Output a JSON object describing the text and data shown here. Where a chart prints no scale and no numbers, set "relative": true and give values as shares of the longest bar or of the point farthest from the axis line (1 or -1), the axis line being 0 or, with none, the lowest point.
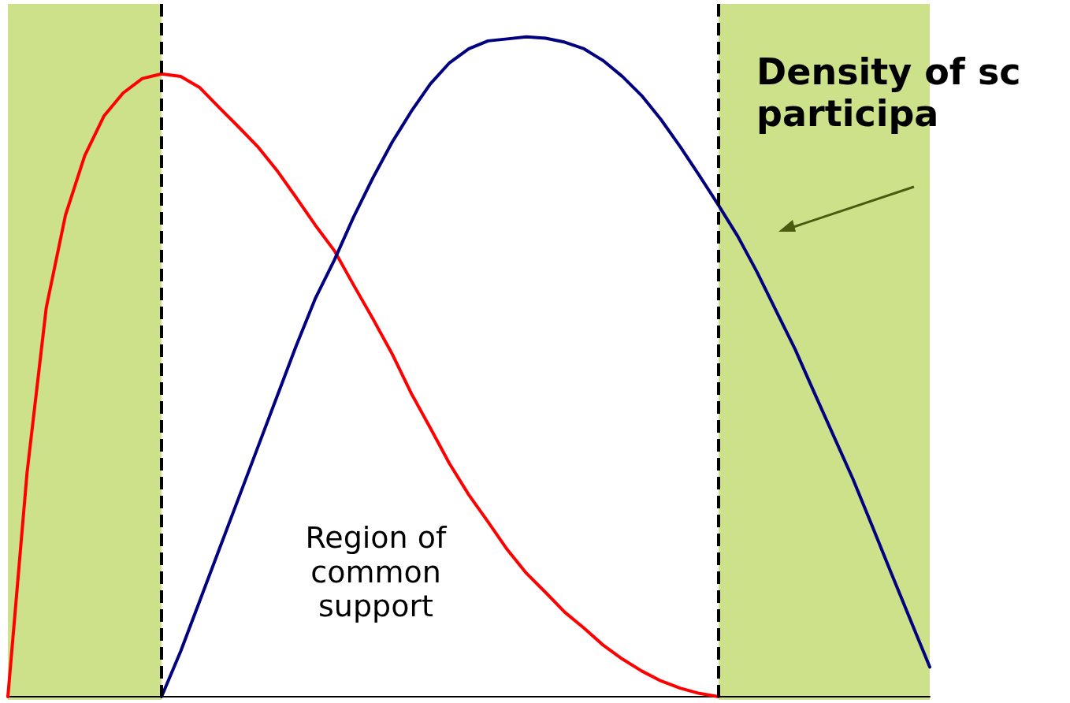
{
  "chart_data": {
    "type": "line",
    "relative": true,
    "grid": false,
    "marker": "none",
    "line_style": "solid",
    "categories": [
      null,
      null,
      null,
      null,
      null,
      null,
      null,
      null,
      null,
      null,
      null,
      null,
      null,
      null,
      null,
      null,
      null,
      null,
      null,
      null,
      null,
      null,
      null,
      null,
      null,
      null,
      null,
      null,
      null,
      null,
      null,
      null,
      null,
      null,
      null,
      null,
      null,
      null,
      null,
      null,
      null,
      null,
      null,
      null,
      null,
      null,
      null,
      null,
      null
    ],
    "series": [
      {
        "color": "#ff0000",
        "values": [
          0,
          0.34,
          0.59,
          0.73,
          0.82,
          0.88,
          0.915,
          0.937,
          0.944,
          0.94,
          0.923,
          0.893,
          0.864,
          0.834,
          0.798,
          0.757,
          0.715,
          0.676,
          0.624,
          0.573,
          0.52,
          0.46,
          0.407,
          0.353,
          0.306,
          0.265,
          0.223,
          0.187,
          0.158,
          0.128,
          0.104,
          0.078,
          0.057,
          0.039,
          0.024,
          0.013,
          0.005,
          0,
          null,
          null,
          null,
          null,
          null,
          null,
          null,
          null,
          null,
          null,
          null
        ]
      },
      {
        "color": "#000080",
        "values": [
          null,
          null,
          null,
          null,
          null,
          null,
          null,
          null,
          0,
          0.069,
          0.146,
          0.223,
          0.3,
          0.377,
          0.454,
          0.531,
          0.603,
          0.662,
          0.727,
          0.786,
          0.84,
          0.887,
          0.929,
          0.961,
          0.982,
          0.994,
          0.997,
          1,
          0.998,
          0.992,
          0.982,
          0.964,
          0.94,
          0.911,
          0.875,
          0.834,
          0.79,
          0.745,
          0.698,
          0.644,
          0.585,
          0.526,
          0.46,
          0.395,
          0.33,
          0.259,
          0.187,
          0.116,
          0.045
        ]
      }
    ],
    "annotations": [
      "Region of\ncommon\nsupport",
      "Density of sc\nparticipa"
    ]
  }
}
